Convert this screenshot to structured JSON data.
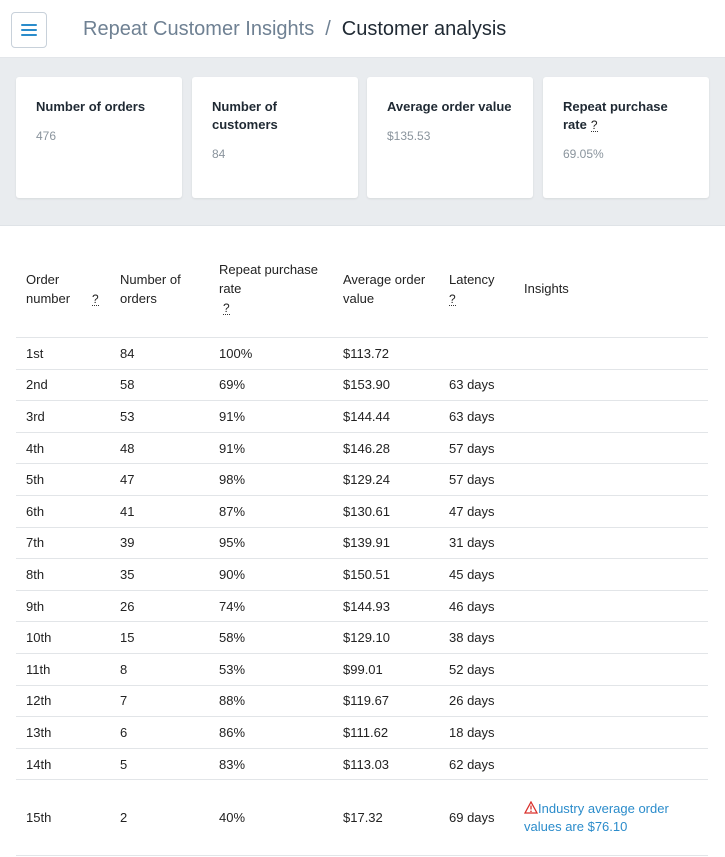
{
  "header": {
    "breadcrumb_parent": "Repeat Customer Insights",
    "breadcrumb_separator": "/",
    "breadcrumb_current": "Customer analysis"
  },
  "summary": {
    "cards": [
      {
        "title": "Number of orders",
        "value": "476",
        "help": ""
      },
      {
        "title": "Number of customers",
        "value": "84",
        "help": ""
      },
      {
        "title": "Average order value",
        "value": "$135.53",
        "help": ""
      },
      {
        "title": "Repeat purchase rate",
        "value": "69.05%",
        "help": "?"
      }
    ]
  },
  "table": {
    "headers": {
      "order_number": "Order number",
      "order_number_help": "?",
      "num_orders": "Number of orders",
      "repeat_rate": "Repeat purchase rate",
      "repeat_rate_help": "?",
      "aov": "Average order value",
      "latency": "Latency",
      "latency_help": "?",
      "insights": "Insights"
    },
    "rows": [
      {
        "order": "1st",
        "orders": "84",
        "rate": "100%",
        "aov": "$113.72",
        "latency": "",
        "insight": ""
      },
      {
        "order": "2nd",
        "orders": "58",
        "rate": "69%",
        "aov": "$153.90",
        "latency": "63 days",
        "insight": ""
      },
      {
        "order": "3rd",
        "orders": "53",
        "rate": "91%",
        "aov": "$144.44",
        "latency": "63 days",
        "insight": ""
      },
      {
        "order": "4th",
        "orders": "48",
        "rate": "91%",
        "aov": "$146.28",
        "latency": "57 days",
        "insight": ""
      },
      {
        "order": "5th",
        "orders": "47",
        "rate": "98%",
        "aov": "$129.24",
        "latency": "57 days",
        "insight": ""
      },
      {
        "order": "6th",
        "orders": "41",
        "rate": "87%",
        "aov": "$130.61",
        "latency": "47 days",
        "insight": ""
      },
      {
        "order": "7th",
        "orders": "39",
        "rate": "95%",
        "aov": "$139.91",
        "latency": "31 days",
        "insight": ""
      },
      {
        "order": "8th",
        "orders": "35",
        "rate": "90%",
        "aov": "$150.51",
        "latency": "45 days",
        "insight": ""
      },
      {
        "order": "9th",
        "orders": "26",
        "rate": "74%",
        "aov": "$144.93",
        "latency": "46 days",
        "insight": ""
      },
      {
        "order": "10th",
        "orders": "15",
        "rate": "58%",
        "aov": "$129.10",
        "latency": "38 days",
        "insight": ""
      },
      {
        "order": "11th",
        "orders": "8",
        "rate": "53%",
        "aov": "$99.01",
        "latency": "52 days",
        "insight": ""
      },
      {
        "order": "12th",
        "orders": "7",
        "rate": "88%",
        "aov": "$119.67",
        "latency": "26 days",
        "insight": ""
      },
      {
        "order": "13th",
        "orders": "6",
        "rate": "86%",
        "aov": "$111.62",
        "latency": "18 days",
        "insight": ""
      },
      {
        "order": "14th",
        "orders": "5",
        "rate": "83%",
        "aov": "$113.03",
        "latency": "62 days",
        "insight": ""
      },
      {
        "order": "15th",
        "orders": "2",
        "rate": "40%",
        "aov": "$17.32",
        "latency": "69 days",
        "insight": "Industry average order values are $76.10"
      }
    ]
  },
  "icons": {
    "menu": "hamburger-menu-icon",
    "warning": "warning-triangle-icon"
  },
  "colors": {
    "accent": "#2b8ccb",
    "warning": "#d9302c",
    "summary_bg": "#e9ecef"
  }
}
